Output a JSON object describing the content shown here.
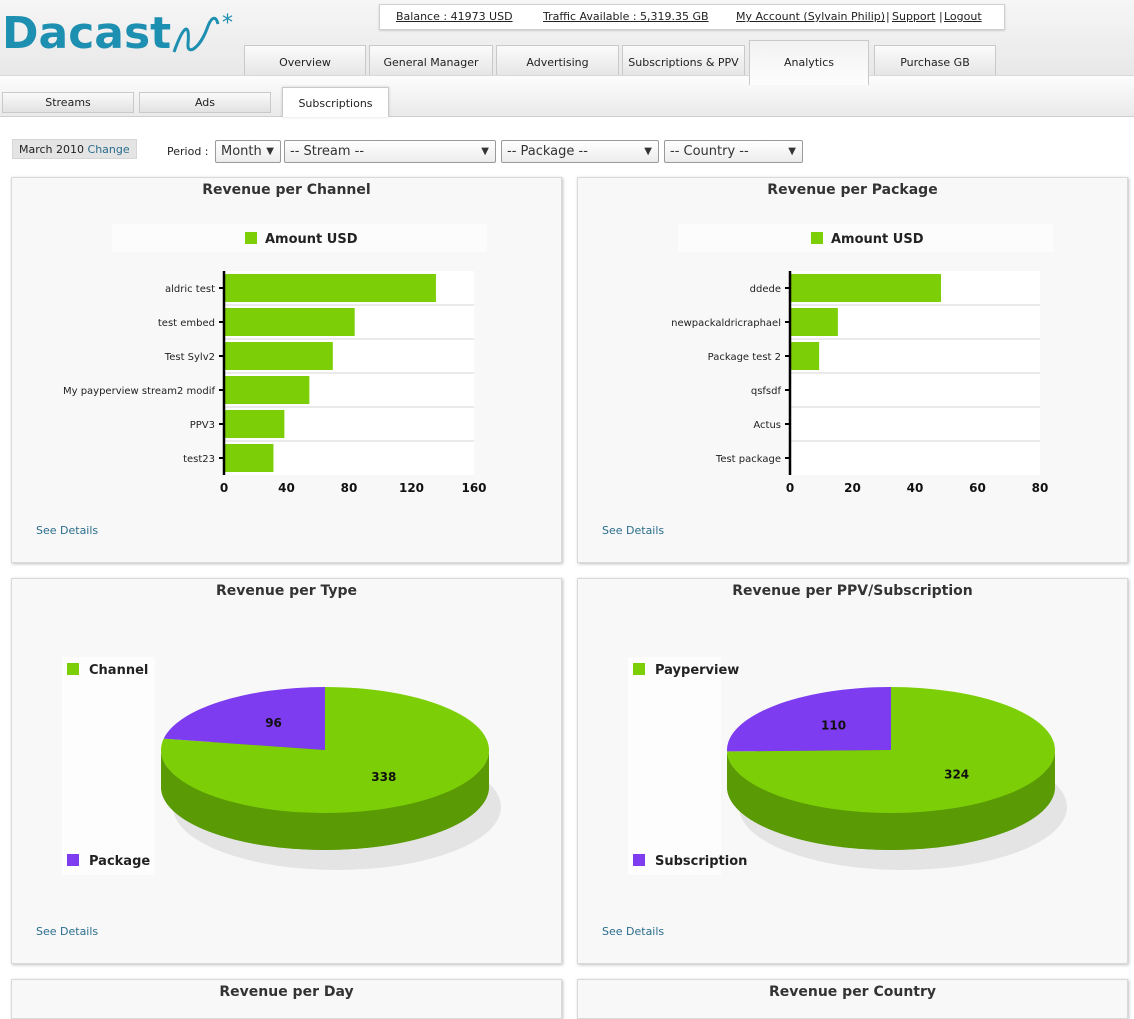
{
  "brand": {
    "name": "Dacast"
  },
  "account_bar": {
    "balance": "Balance : 41973 USD",
    "traffic": "Traffic Available : 5,319.35 GB",
    "account": "My Account (Sylvain Philip)",
    "support": "Support",
    "logout": "Logout",
    "separator": "|"
  },
  "main_tabs": [
    {
      "label": "Overview"
    },
    {
      "label": "General Manager"
    },
    {
      "label": "Advertising"
    },
    {
      "label": "Subscriptions & PPV"
    },
    {
      "label": "Analytics"
    },
    {
      "label": "Purchase GB"
    }
  ],
  "sub_tabs": [
    {
      "label": "Streams"
    },
    {
      "label": "Ads"
    },
    {
      "label": "Subscriptions"
    }
  ],
  "filters": {
    "date": "March 2010",
    "change": "Change",
    "period_label": "Period :",
    "period": "Month",
    "stream": "-- Stream --",
    "package": "-- Package --",
    "country": "-- Country --"
  },
  "panels": {
    "channel": {
      "title": "Revenue per Channel",
      "see_details": "See Details"
    },
    "package": {
      "title": "Revenue per Package",
      "see_details": "See Details"
    },
    "type": {
      "title": "Revenue per Type",
      "see_details": "See Details"
    },
    "ppv": {
      "title": "Revenue per PPV/Subscription",
      "see_details": "See Details"
    },
    "day": {
      "title": "Revenue per Day"
    },
    "country": {
      "title": "Revenue per Country"
    }
  },
  "colors": {
    "green": "#7ccf06",
    "green_dark": "#5a9a05",
    "purple": "#7d3cf0",
    "link": "#2a6d8c"
  },
  "chart_data": [
    {
      "type": "bar",
      "orientation": "horizontal",
      "title": "Revenue per Channel",
      "legend": [
        "Amount USD"
      ],
      "legend_position": "top",
      "categories": [
        "aldric test",
        "test embed",
        "Test Sylv2",
        "My payperview stream2 modif",
        "PPV3",
        "test23"
      ],
      "values": [
        135,
        83,
        69,
        54,
        38,
        31
      ],
      "xlim": [
        0,
        160
      ],
      "ticks": [
        "0",
        "40",
        "80",
        "120",
        "160"
      ],
      "grid": true
    },
    {
      "type": "bar",
      "orientation": "horizontal",
      "title": "Revenue per Package",
      "legend": [
        "Amount USD"
      ],
      "legend_position": "top",
      "categories": [
        "ddede",
        "newpackaldricraphael",
        "Package test 2",
        "qsfsdf",
        "Actus",
        "Test package"
      ],
      "values": [
        48,
        15,
        9,
        0,
        0,
        0
      ],
      "xlim": [
        0,
        80
      ],
      "ticks": [
        "0",
        "20",
        "40",
        "60",
        "80"
      ],
      "grid": true
    },
    {
      "type": "pie",
      "title": "Revenue per Type",
      "legend": [
        "Channel",
        "Package"
      ],
      "legend_position": "left",
      "slices": [
        {
          "label": "Channel",
          "value": 338,
          "text": "338"
        },
        {
          "label": "Package",
          "value": 96,
          "text": "96"
        }
      ]
    },
    {
      "type": "pie",
      "title": "Revenue per PPV/Subscription",
      "legend": [
        "Payperview",
        "Subscription"
      ],
      "legend_position": "left",
      "slices": [
        {
          "label": "Payperview",
          "value": 324,
          "text": "324"
        },
        {
          "label": "Subscription",
          "value": 110,
          "text": "110"
        }
      ]
    }
  ]
}
